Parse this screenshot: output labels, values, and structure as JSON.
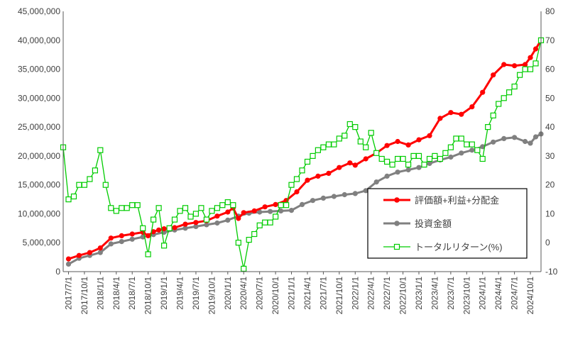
{
  "chart_data": {
    "type": "line",
    "title": "",
    "xlabel": "",
    "ylabel": "",
    "y2label": "",
    "ylim": [
      0,
      45000000
    ],
    "y2lim": [
      -10,
      80
    ],
    "grid": false,
    "legend_position": "right",
    "x_tick_labels": [
      "2017/7/1",
      "2017/10/1",
      "2018/1/1",
      "2018/4/1",
      "2018/7/1",
      "2018/10/1",
      "2019/1/1",
      "2019/4/1",
      "2019/7/1",
      "2019/10/1",
      "2020/1/1",
      "2020/4/1",
      "2020/7/1",
      "2020/10/1",
      "2021/1/1",
      "2021/4/1",
      "2021/7/1",
      "2021/10/1",
      "2022/1/1",
      "2022/4/1",
      "2022/7/1",
      "2022/10/1",
      "2023/1/1",
      "2023/4/1",
      "2023/7/1",
      "2023/10/1",
      "2024/1/1",
      "2024/4/1",
      "2024/7/1",
      "2024/10/1"
    ],
    "y_tick_labels": [
      "0",
      "5,000,000",
      "10,000,000",
      "15,000,000",
      "20,000,000",
      "25,000,000",
      "30,000,000",
      "35,000,000",
      "40,000,000",
      "45,000,000"
    ],
    "y2_tick_labels": [
      "-10",
      "0",
      "10",
      "20",
      "30",
      "40",
      "50",
      "60",
      "70",
      "80"
    ],
    "series": [
      {
        "name": "評価額+利益+分配金",
        "axis": "left",
        "color": "#ff0000",
        "marker": "circle",
        "x": [
          "2017/07",
          "2017/09",
          "2017/11",
          "2018/01",
          "2018/03",
          "2018/05",
          "2018/07",
          "2018/09",
          "2018/10",
          "2018/11",
          "2018/12",
          "2019/01",
          "2019/03",
          "2019/05",
          "2019/07",
          "2019/09",
          "2019/11",
          "2020/01",
          "2020/02",
          "2020/03",
          "2020/04",
          "2020/06",
          "2020/08",
          "2020/10",
          "2020/12",
          "2021/02",
          "2021/04",
          "2021/06",
          "2021/08",
          "2021/10",
          "2021/12",
          "2022/01",
          "2022/03",
          "2022/05",
          "2022/07",
          "2022/09",
          "2022/11",
          "2023/01",
          "2023/03",
          "2023/05",
          "2023/07",
          "2023/09",
          "2023/11",
          "2024/01",
          "2024/03",
          "2024/05",
          "2024/07",
          "2024/09",
          "2024/10",
          "2024/11",
          "2024/12"
        ],
        "values": [
          2200000,
          2800000,
          3300000,
          4100000,
          5800000,
          6200000,
          6500000,
          6800000,
          6200000,
          6900000,
          7200000,
          7400000,
          7600000,
          8200000,
          8500000,
          8800000,
          9600000,
          10300000,
          11000000,
          9200000,
          10200000,
          10500000,
          11200000,
          11600000,
          12300000,
          13800000,
          15800000,
          16500000,
          17000000,
          18000000,
          18800000,
          18400000,
          19500000,
          20500000,
          21800000,
          22500000,
          21900000,
          22800000,
          23500000,
          26500000,
          27500000,
          27200000,
          28500000,
          31000000,
          34000000,
          35800000,
          35600000,
          35800000,
          37000000,
          38500000,
          40000000
        ]
      },
      {
        "name": "投資金額",
        "axis": "left",
        "color": "#808080",
        "marker": "circle",
        "x": [
          "2017/07",
          "2017/09",
          "2017/11",
          "2018/01",
          "2018/03",
          "2018/05",
          "2018/07",
          "2018/09",
          "2018/11",
          "2019/01",
          "2019/03",
          "2019/05",
          "2019/07",
          "2019/09",
          "2019/11",
          "2020/01",
          "2020/03",
          "2020/05",
          "2020/07",
          "2020/09",
          "2020/11",
          "2021/01",
          "2021/03",
          "2021/05",
          "2021/07",
          "2021/09",
          "2021/11",
          "2022/01",
          "2022/03",
          "2022/05",
          "2022/07",
          "2022/09",
          "2022/11",
          "2023/01",
          "2023/03",
          "2023/05",
          "2023/07",
          "2023/09",
          "2023/11",
          "2024/01",
          "2024/03",
          "2024/05",
          "2024/07",
          "2024/09",
          "2024/10",
          "2024/11",
          "2024/12"
        ],
        "values": [
          1300000,
          2300000,
          2800000,
          3300000,
          4800000,
          5200000,
          5600000,
          6000000,
          6400000,
          6800000,
          7200000,
          7500000,
          7800000,
          8100000,
          8400000,
          8900000,
          9600000,
          10100000,
          10300000,
          10400000,
          10500000,
          10600000,
          11600000,
          12300000,
          12700000,
          13000000,
          13300000,
          13500000,
          14000000,
          15500000,
          16500000,
          17200000,
          17600000,
          18000000,
          18700000,
          19300000,
          19800000,
          20500000,
          21000000,
          21600000,
          22400000,
          23000000,
          23200000,
          22500000,
          22200000,
          23300000,
          23800000
        ]
      },
      {
        "name": "トータルリターン(%)",
        "axis": "right",
        "color": "#00cc00",
        "marker": "hollow-square",
        "x": [
          "2017/06",
          "2017/07",
          "2017/08",
          "2017/09",
          "2017/10",
          "2017/11",
          "2017/12",
          "2018/01",
          "2018/02",
          "2018/03",
          "2018/04",
          "2018/05",
          "2018/06",
          "2018/07",
          "2018/08",
          "2018/09",
          "2018/10",
          "2018/11",
          "2018/12",
          "2019/01",
          "2019/02",
          "2019/03",
          "2019/04",
          "2019/05",
          "2019/06",
          "2019/07",
          "2019/08",
          "2019/09",
          "2019/10",
          "2019/11",
          "2019/12",
          "2020/01",
          "2020/02",
          "2020/03",
          "2020/04",
          "2020/05",
          "2020/06",
          "2020/07",
          "2020/08",
          "2020/09",
          "2020/10",
          "2020/11",
          "2020/12",
          "2021/01",
          "2021/02",
          "2021/03",
          "2021/04",
          "2021/05",
          "2021/06",
          "2021/07",
          "2021/08",
          "2021/09",
          "2021/10",
          "2021/11",
          "2021/12",
          "2022/01",
          "2022/02",
          "2022/03",
          "2022/04",
          "2022/05",
          "2022/06",
          "2022/07",
          "2022/08",
          "2022/09",
          "2022/10",
          "2022/11",
          "2022/12",
          "2023/01",
          "2023/02",
          "2023/03",
          "2023/04",
          "2023/05",
          "2023/06",
          "2023/07",
          "2023/08",
          "2023/09",
          "2023/10",
          "2023/11",
          "2023/12",
          "2024/01",
          "2024/02",
          "2024/03",
          "2024/04",
          "2024/05",
          "2024/06",
          "2024/07",
          "2024/08",
          "2024/09",
          "2024/10",
          "2024/11",
          "2024/12"
        ],
        "values": [
          33,
          15,
          16,
          20,
          20,
          22,
          25,
          32,
          20,
          12,
          11,
          12,
          12,
          13,
          13,
          5,
          -4,
          8,
          12,
          -1,
          5,
          8,
          11,
          12,
          9,
          10,
          12,
          8,
          11,
          12,
          13,
          14,
          13,
          0,
          -9,
          1,
          3,
          6,
          7,
          7,
          9,
          13,
          13,
          20,
          22,
          25,
          28,
          30,
          32,
          33,
          34,
          34,
          36,
          37,
          41,
          40,
          35,
          33,
          38,
          31,
          29,
          28,
          27,
          29,
          29,
          27,
          30,
          30,
          27,
          29,
          30,
          29,
          31,
          33,
          36,
          36,
          34,
          34,
          32,
          29,
          40,
          44,
          48,
          50,
          52,
          54,
          58,
          60,
          60,
          62,
          70
        ]
      }
    ]
  }
}
